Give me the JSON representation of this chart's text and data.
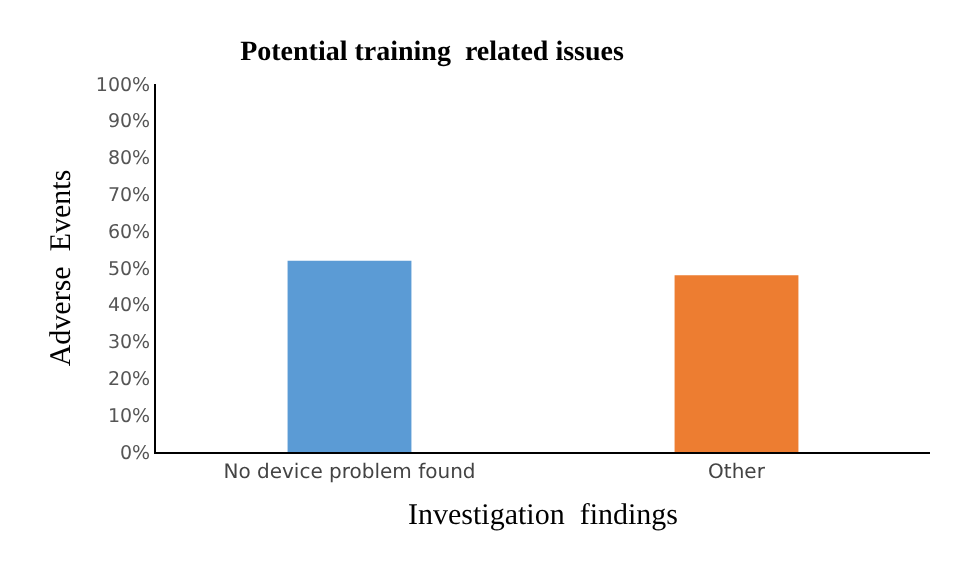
{
  "chart_data": {
    "type": "bar",
    "title": "Potential training  related issues",
    "xlabel": "Investigation  findings",
    "ylabel": "Adverse  Events",
    "categories": [
      "No device problem found",
      "Other"
    ],
    "colors": [
      "#5b9bd5",
      "#ed7d31"
    ],
    "values": [
      52,
      48
    ],
    "ylim": [
      0,
      100
    ],
    "yticks": [
      {
        "value": 0,
        "label": "0%"
      },
      {
        "value": 10,
        "label": "10%"
      },
      {
        "value": 20,
        "label": "20%"
      },
      {
        "value": 30,
        "label": "30%"
      },
      {
        "value": 40,
        "label": "40%"
      },
      {
        "value": 50,
        "label": "50%"
      },
      {
        "value": 60,
        "label": "60%"
      },
      {
        "value": 70,
        "label": "70%"
      },
      {
        "value": 80,
        "label": "80%"
      },
      {
        "value": 90,
        "label": "90%"
      },
      {
        "value": 100,
        "label": "100%"
      }
    ],
    "grid": false
  }
}
